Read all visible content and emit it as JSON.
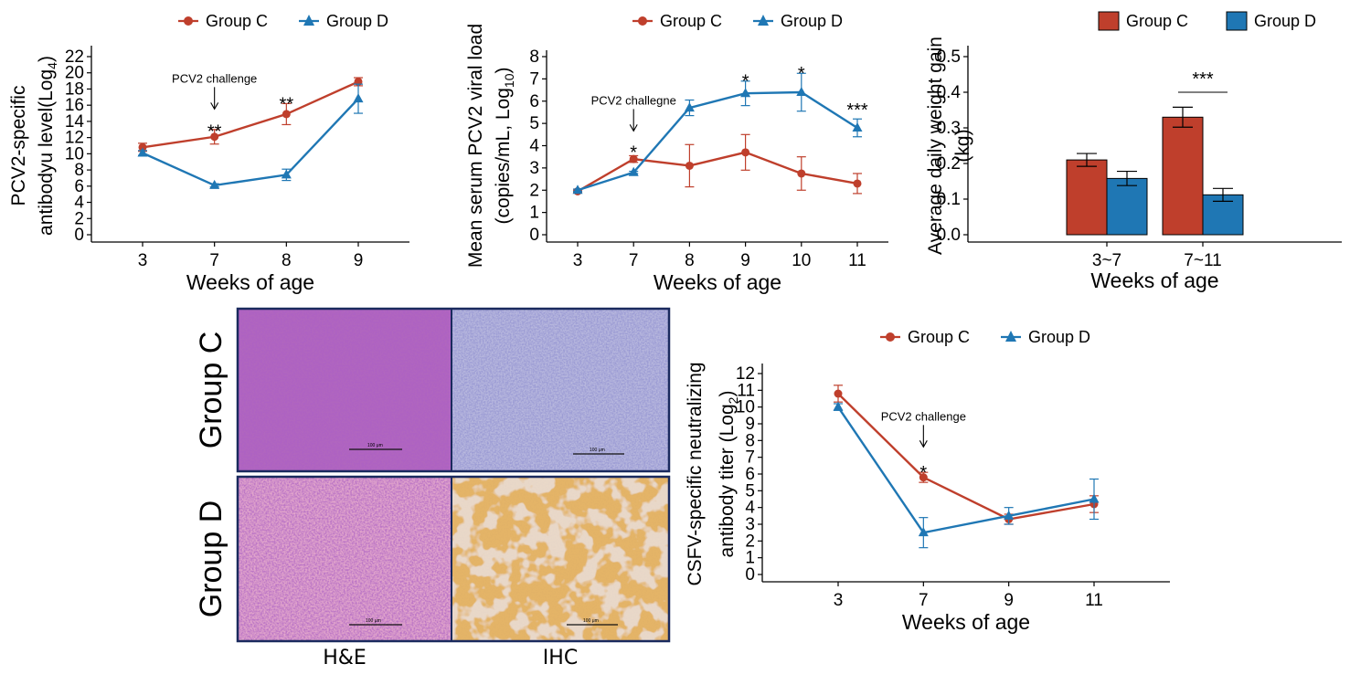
{
  "colors": {
    "group_c": "#bf3f2c",
    "group_d": "#1f77b4",
    "panel_border": "#1a2a5e"
  },
  "chart_data": [
    {
      "id": "pcv2-antibody",
      "type": "line",
      "xlabel": "Weeks of age",
      "ylabel_line1": "PCV2-specific",
      "ylabel_line2": "antibodyu level(Log",
      "ylabel_sub": "4",
      "ylabel_close": ")",
      "categories": [
        "3",
        "7",
        "8",
        "9"
      ],
      "ylim": [
        0,
        22
      ],
      "yticks": [
        0,
        2,
        4,
        6,
        8,
        10,
        12,
        14,
        16,
        18,
        20,
        22
      ],
      "series": [
        {
          "name": "Group C",
          "marker": "circle",
          "values": [
            10.8,
            12.1,
            14.9,
            18.9
          ],
          "err": [
            0.5,
            0.9,
            1.3,
            0.5
          ]
        },
        {
          "name": "Group D",
          "marker": "triangle",
          "values": [
            10.1,
            6.1,
            7.4,
            16.8
          ],
          "err": [
            0.3,
            0.2,
            0.7,
            1.8
          ]
        }
      ],
      "significance": [
        {
          "category": "7",
          "label": "**",
          "y": 13.6
        },
        {
          "category": "8",
          "label": "**",
          "y": 17.0
        }
      ],
      "annotation": {
        "category": "7",
        "text": "PCV2 challenge",
        "y": 18.8
      }
    },
    {
      "id": "pcv2-viral-load",
      "type": "line",
      "xlabel": "Weeks of age",
      "ylabel_line1": "Mean serum PCV2 viral load",
      "ylabel_line2": "(copies/mL, Log",
      "ylabel_sub": "10",
      "ylabel_close": ")",
      "categories": [
        "3",
        "7",
        "8",
        "9",
        "10",
        "11"
      ],
      "ylim": [
        0,
        8
      ],
      "yticks": [
        0,
        1,
        2,
        3,
        4,
        5,
        6,
        7,
        8
      ],
      "series": [
        {
          "name": "Group C",
          "marker": "circle",
          "values": [
            1.95,
            3.4,
            3.1,
            3.7,
            2.75,
            2.3
          ],
          "err": [
            0.05,
            0.15,
            0.95,
            0.8,
            0.75,
            0.45
          ]
        },
        {
          "name": "Group D",
          "marker": "triangle",
          "values": [
            2.0,
            2.8,
            5.7,
            6.35,
            6.4,
            4.8
          ],
          "err": [
            0.05,
            0.05,
            0.35,
            0.55,
            0.85,
            0.4
          ]
        }
      ],
      "significance": [
        {
          "category": "7",
          "label": "*",
          "y": 4.0
        },
        {
          "category": "9",
          "label": "*",
          "y": 7.2
        },
        {
          "category": "10",
          "label": "*",
          "y": 7.55
        },
        {
          "category": "11",
          "label": "***",
          "y": 5.9
        }
      ],
      "annotation": {
        "category": "7",
        "text": "PCV2 challegne",
        "y": 5.85
      }
    },
    {
      "id": "weight-gain",
      "type": "bar",
      "xlabel": "Weeks of age",
      "ylabel_line1": "Average daily weight gain",
      "ylabel_line2": "(kg)",
      "categories": [
        "3~7",
        "7~11"
      ],
      "ylim": [
        0,
        0.5
      ],
      "yticks": [
        "0.0",
        "0.1",
        "0.2",
        "0.3",
        "0.4",
        "0.5"
      ],
      "ytick_values": [
        0,
        0.1,
        0.2,
        0.3,
        0.4,
        0.5
      ],
      "series": [
        {
          "name": "Group C",
          "values": [
            0.21,
            0.33
          ],
          "err": [
            0.018,
            0.028
          ]
        },
        {
          "name": "Group D",
          "values": [
            0.158,
            0.112
          ],
          "err": [
            0.02,
            0.018
          ]
        }
      ],
      "significance": [
        {
          "category": "7~11",
          "label": "***",
          "y": 0.4
        }
      ],
      "legend": "top"
    },
    {
      "id": "csfv-antibody",
      "type": "line",
      "xlabel": "Weeks of age",
      "ylabel_line1": "CSFV-specific neutralizing",
      "ylabel_line2": "antibody titer (Log",
      "ylabel_sub": "2",
      "ylabel_close": ")",
      "categories": [
        "3",
        "7",
        "9",
        "11"
      ],
      "ylim": [
        0,
        12
      ],
      "yticks": [
        0,
        1,
        2,
        3,
        4,
        5,
        6,
        7,
        8,
        9,
        10,
        11,
        12
      ],
      "series": [
        {
          "name": "Group C",
          "marker": "circle",
          "values": [
            10.8,
            5.8,
            3.3,
            4.2
          ],
          "err": [
            0.5,
            0.3,
            0.3,
            0.5
          ]
        },
        {
          "name": "Group D",
          "marker": "triangle",
          "values": [
            10.0,
            2.5,
            3.5,
            4.5
          ],
          "err": [
            0.2,
            0.9,
            0.5,
            1.2
          ]
        }
      ],
      "significance": [
        {
          "category": "7",
          "label": "*",
          "y": 6.5
        }
      ],
      "annotation": {
        "category": "7",
        "text": "PCV2 challenge",
        "y": 9.2
      }
    }
  ],
  "histology": {
    "row_labels": [
      "Group C",
      "Group D"
    ],
    "col_labels": [
      "H&E",
      "IHC"
    ],
    "scale_label": "100 μm"
  }
}
